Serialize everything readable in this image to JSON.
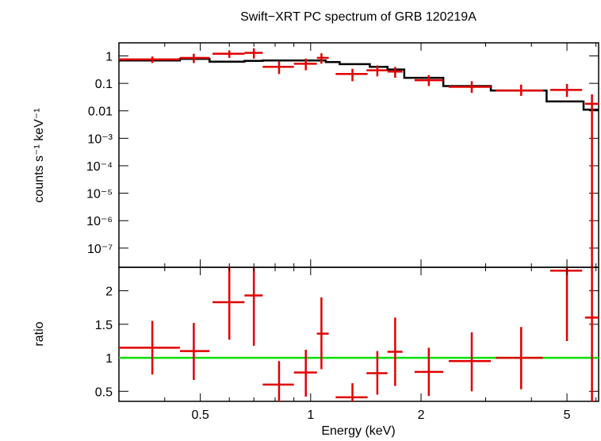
{
  "chart_data": {
    "type": "scatter",
    "title": "Swift−XRT PC spectrum of GRB 120219A",
    "xlabel": "Energy (keV)",
    "x_scale": "log",
    "xlim": [
      0.3,
      6.1
    ],
    "x_ticks": [
      {
        "value": 0.5,
        "label": "0.5"
      },
      {
        "value": 1,
        "label": "1"
      },
      {
        "value": 2,
        "label": "2"
      },
      {
        "value": 5,
        "label": "5"
      }
    ],
    "panels": [
      {
        "id": "spectrum",
        "ylabel": "counts s⁻¹ keV⁻¹",
        "y_scale": "log",
        "ylim": [
          2e-08,
          3
        ],
        "y_ticks": [
          {
            "value": 1,
            "label": "1"
          },
          {
            "value": 0.1,
            "label": "0.1"
          },
          {
            "value": 0.01,
            "label": "0.01"
          },
          {
            "value": 0.001,
            "label": "10⁻³"
          },
          {
            "value": 0.0001,
            "label": "10⁻⁴"
          },
          {
            "value": 1e-05,
            "label": "10⁻⁵"
          },
          {
            "value": 1e-06,
            "label": "10⁻⁶"
          },
          {
            "value": 1e-07,
            "label": "10⁻⁷"
          }
        ],
        "series": [
          {
            "kind": "data",
            "color": "#e00000",
            "points": [
              {
                "x": 0.37,
                "xlo": 0.3,
                "xhi": 0.44,
                "y": 0.75,
                "ylo": 0.55,
                "yhi": 0.95
              },
              {
                "x": 0.48,
                "xlo": 0.44,
                "xhi": 0.53,
                "y": 0.85,
                "ylo": 0.55,
                "yhi": 1.2
              },
              {
                "x": 0.6,
                "xlo": 0.54,
                "xhi": 0.66,
                "y": 1.2,
                "ylo": 0.85,
                "yhi": 1.6
              },
              {
                "x": 0.7,
                "xlo": 0.66,
                "xhi": 0.74,
                "y": 1.3,
                "ylo": 0.8,
                "yhi": 1.9
              },
              {
                "x": 0.82,
                "xlo": 0.74,
                "xhi": 0.9,
                "y": 0.4,
                "ylo": 0.22,
                "yhi": 0.62
              },
              {
                "x": 0.97,
                "xlo": 0.9,
                "xhi": 1.04,
                "y": 0.52,
                "ylo": 0.3,
                "yhi": 0.8
              },
              {
                "x": 1.07,
                "xlo": 1.04,
                "xhi": 1.12,
                "y": 0.85,
                "ylo": 0.52,
                "yhi": 1.25
              },
              {
                "x": 1.3,
                "xlo": 1.17,
                "xhi": 1.43,
                "y": 0.22,
                "ylo": 0.12,
                "yhi": 0.34
              },
              {
                "x": 1.52,
                "xlo": 1.42,
                "xhi": 1.62,
                "y": 0.3,
                "ylo": 0.18,
                "yhi": 0.45
              },
              {
                "x": 1.7,
                "xlo": 1.62,
                "xhi": 1.78,
                "y": 0.27,
                "ylo": 0.16,
                "yhi": 0.4
              },
              {
                "x": 2.1,
                "xlo": 1.92,
                "xhi": 2.3,
                "y": 0.13,
                "ylo": 0.08,
                "yhi": 0.2
              },
              {
                "x": 2.75,
                "xlo": 2.38,
                "xhi": 3.1,
                "y": 0.075,
                "ylo": 0.045,
                "yhi": 0.12
              },
              {
                "x": 3.75,
                "xlo": 3.2,
                "xhi": 4.3,
                "y": 0.055,
                "ylo": 0.035,
                "yhi": 0.09
              },
              {
                "x": 5.0,
                "xlo": 4.5,
                "xhi": 5.5,
                "y": 0.058,
                "ylo": 0.032,
                "yhi": 0.095
              },
              {
                "x": 5.85,
                "xlo": 5.6,
                "xhi": 6.1,
                "y": 0.018,
                "ylo": 2e-08,
                "yhi": 0.04
              }
            ]
          },
          {
            "kind": "model",
            "color": "#000000",
            "steps": [
              {
                "x0": 0.3,
                "x1": 0.44,
                "y": 0.68
              },
              {
                "x0": 0.44,
                "x1": 0.53,
                "y": 0.78
              },
              {
                "x0": 0.53,
                "x1": 0.66,
                "y": 0.62
              },
              {
                "x0": 0.66,
                "x1": 0.74,
                "y": 0.66
              },
              {
                "x0": 0.74,
                "x1": 0.9,
                "y": 0.68
              },
              {
                "x0": 0.9,
                "x1": 1.1,
                "y": 0.68
              },
              {
                "x0": 1.1,
                "x1": 1.2,
                "y": 0.6
              },
              {
                "x0": 1.2,
                "x1": 1.45,
                "y": 0.5
              },
              {
                "x0": 1.45,
                "x1": 1.62,
                "y": 0.4
              },
              {
                "x0": 1.62,
                "x1": 1.8,
                "y": 0.32
              },
              {
                "x0": 1.8,
                "x1": 2.3,
                "y": 0.16
              },
              {
                "x0": 2.3,
                "x1": 3.1,
                "y": 0.08
              },
              {
                "x0": 3.1,
                "x1": 4.4,
                "y": 0.055
              },
              {
                "x0": 4.4,
                "x1": 5.55,
                "y": 0.022
              },
              {
                "x0": 5.55,
                "x1": 6.1,
                "y": 0.011
              }
            ]
          }
        ]
      },
      {
        "id": "ratio",
        "ylabel": "ratio",
        "y_scale": "linear",
        "ylim": [
          0.35,
          2.35
        ],
        "y_ticks": [
          {
            "value": 0.5,
            "label": "0.5"
          },
          {
            "value": 1,
            "label": "1"
          },
          {
            "value": 1.5,
            "label": "1.5"
          },
          {
            "value": 2,
            "label": "2"
          }
        ],
        "reference_line": {
          "y": 1,
          "color": "#00e000"
        },
        "series": [
          {
            "kind": "data",
            "color": "#e00000",
            "points": [
              {
                "x": 0.37,
                "xlo": 0.3,
                "xhi": 0.44,
                "y": 1.15,
                "ylo": 0.75,
                "yhi": 1.55
              },
              {
                "x": 0.48,
                "xlo": 0.44,
                "xhi": 0.53,
                "y": 1.1,
                "ylo": 0.67,
                "yhi": 1.52
              },
              {
                "x": 0.6,
                "xlo": 0.54,
                "xhi": 0.66,
                "y": 1.83,
                "ylo": 1.27,
                "yhi": 2.35
              },
              {
                "x": 0.7,
                "xlo": 0.66,
                "xhi": 0.74,
                "y": 1.93,
                "ylo": 1.18,
                "yhi": 2.35
              },
              {
                "x": 0.82,
                "xlo": 0.74,
                "xhi": 0.9,
                "y": 0.6,
                "ylo": 0.35,
                "yhi": 0.95
              },
              {
                "x": 0.97,
                "xlo": 0.9,
                "xhi": 1.04,
                "y": 0.78,
                "ylo": 0.42,
                "yhi": 1.12
              },
              {
                "x": 1.07,
                "xlo": 1.04,
                "xhi": 1.12,
                "y": 1.36,
                "ylo": 0.83,
                "yhi": 1.9
              },
              {
                "x": 1.3,
                "xlo": 1.17,
                "xhi": 1.43,
                "y": 0.41,
                "ylo": 0.35,
                "yhi": 0.62
              },
              {
                "x": 1.52,
                "xlo": 1.42,
                "xhi": 1.62,
                "y": 0.77,
                "ylo": 0.45,
                "yhi": 1.1
              },
              {
                "x": 1.7,
                "xlo": 1.62,
                "xhi": 1.78,
                "y": 1.09,
                "ylo": 0.58,
                "yhi": 1.6
              },
              {
                "x": 2.1,
                "xlo": 1.92,
                "xhi": 2.3,
                "y": 0.79,
                "ylo": 0.43,
                "yhi": 1.15
              },
              {
                "x": 2.75,
                "xlo": 2.38,
                "xhi": 3.1,
                "y": 0.95,
                "ylo": 0.5,
                "yhi": 1.38
              },
              {
                "x": 3.75,
                "xlo": 3.2,
                "xhi": 4.3,
                "y": 1.0,
                "ylo": 0.53,
                "yhi": 1.46
              },
              {
                "x": 5.0,
                "xlo": 4.5,
                "xhi": 5.5,
                "y": 2.3,
                "ylo": 1.25,
                "yhi": 2.35
              },
              {
                "x": 5.85,
                "xlo": 5.6,
                "xhi": 6.1,
                "y": 1.6,
                "ylo": 0.35,
                "yhi": 2.35
              }
            ]
          }
        ]
      }
    ]
  }
}
